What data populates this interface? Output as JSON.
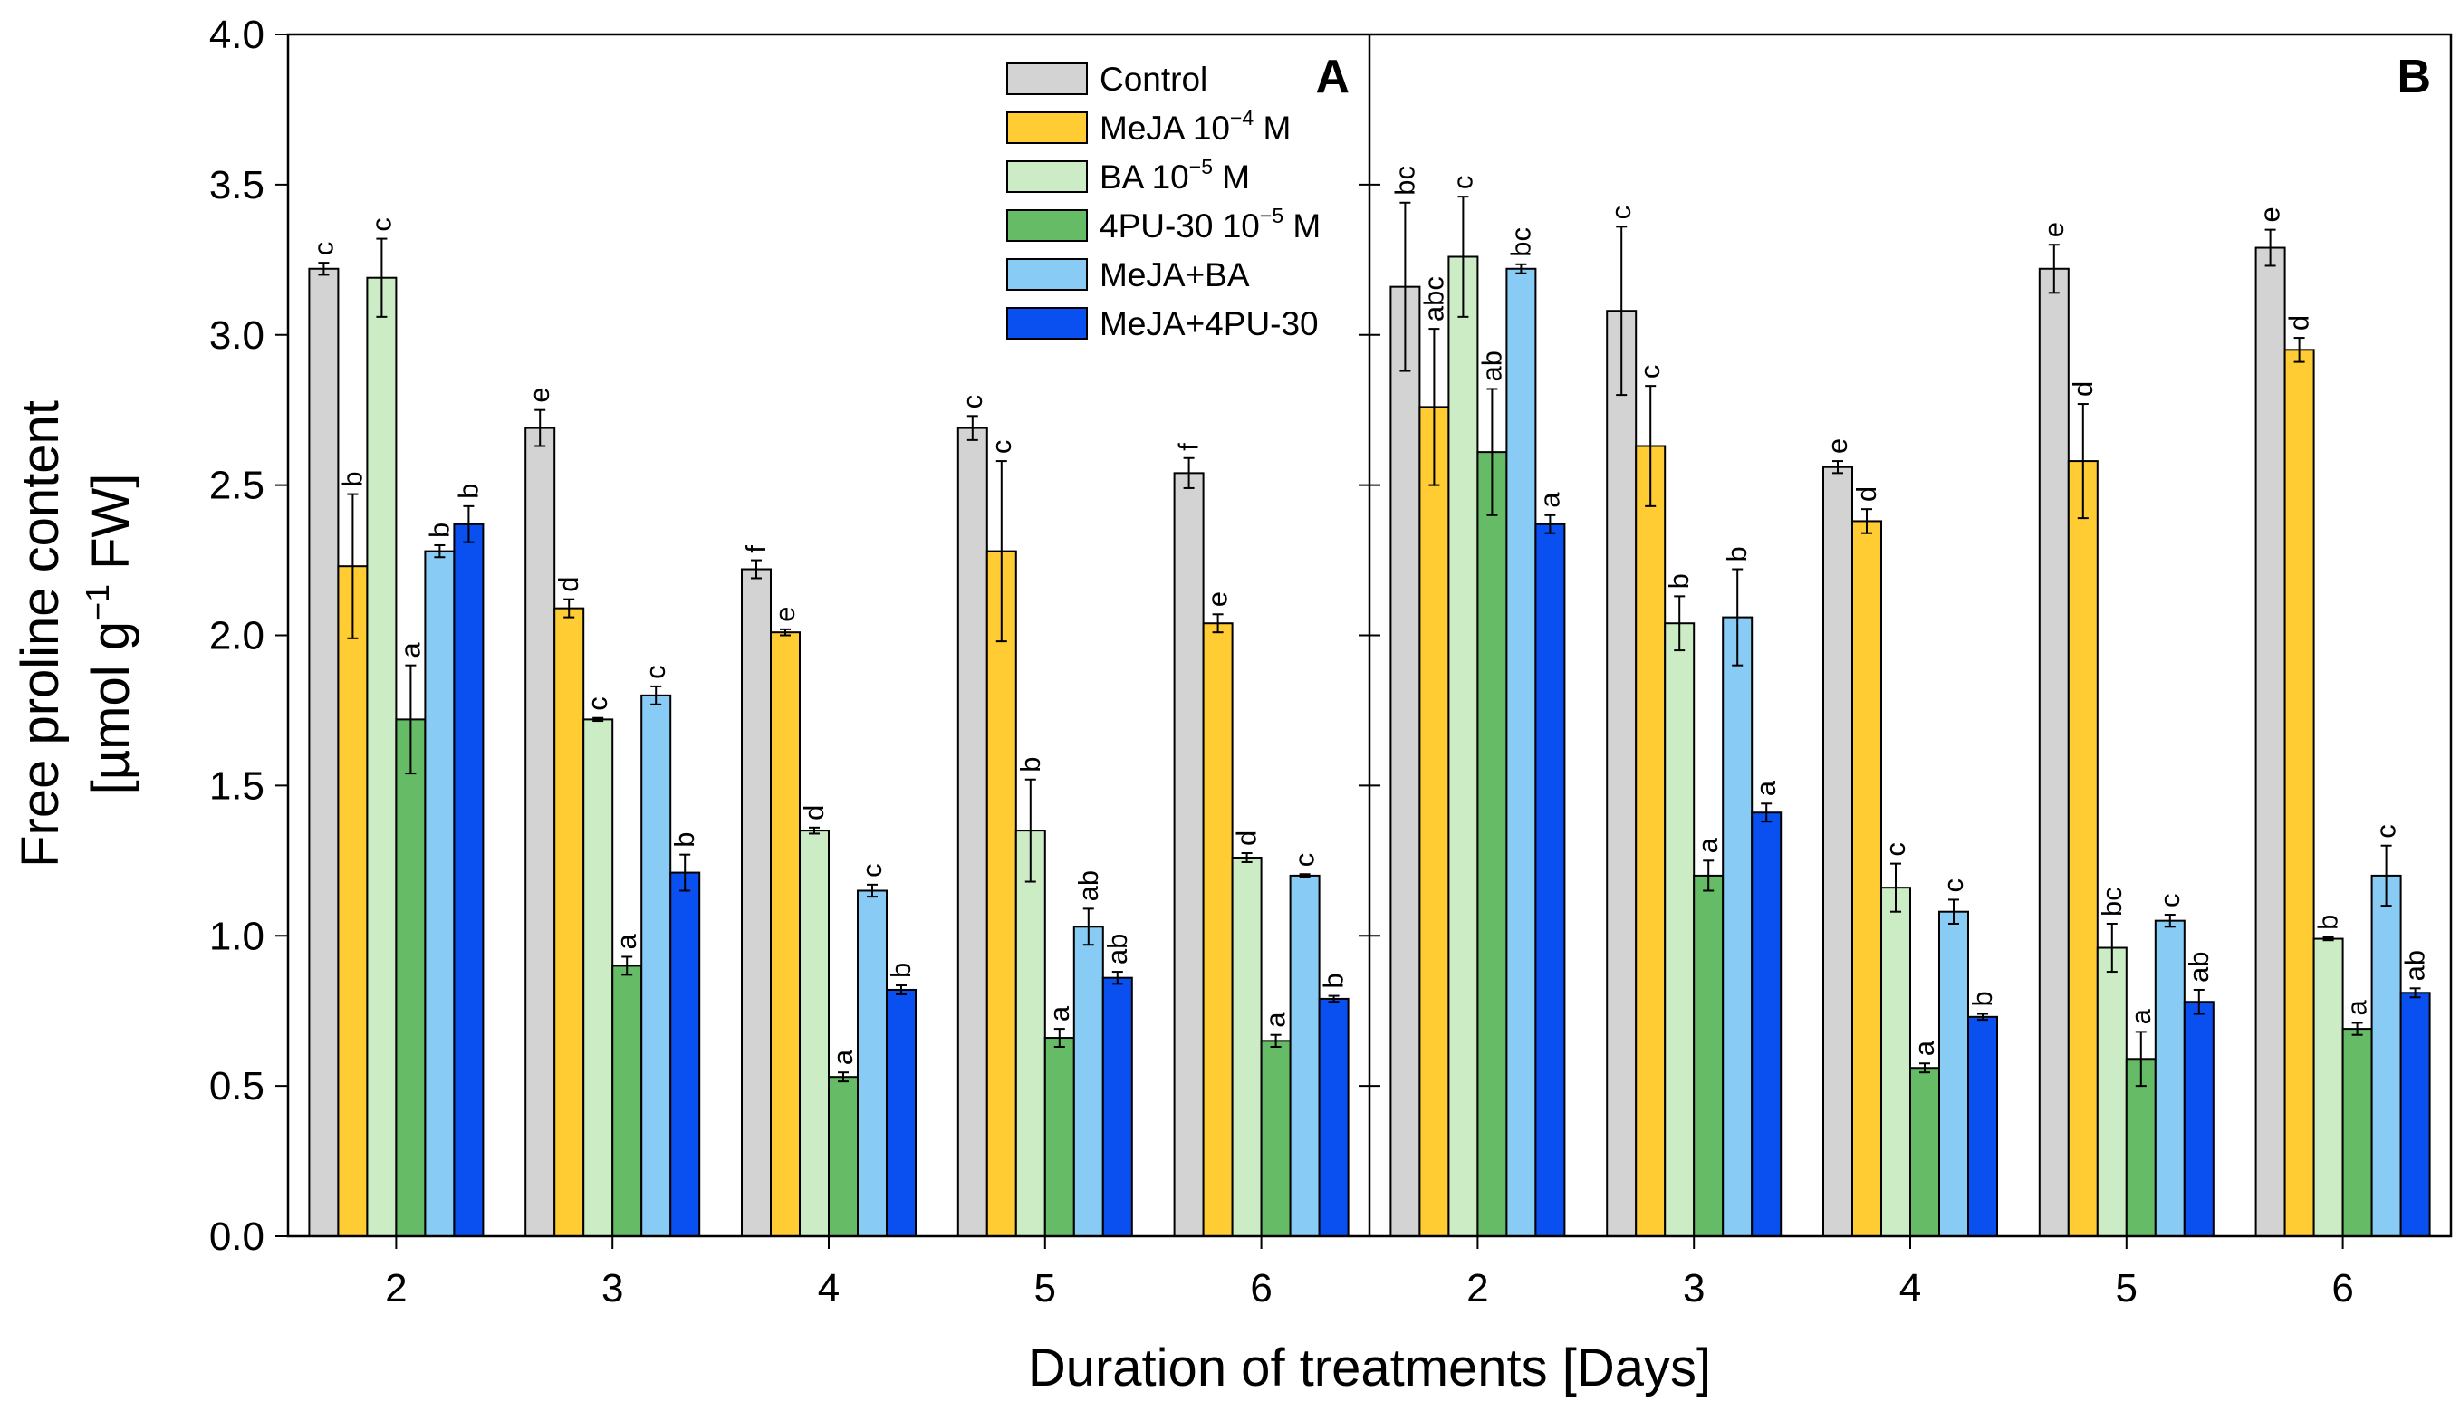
{
  "chart_data": {
    "type": "bar",
    "ylabel_line1": "Free proline content",
    "ylabel_line2_pre": "[µmol g",
    "ylabel_line2_sup": "−1",
    "ylabel_line2_post": " FW]",
    "xlabel": "Duration of treatments [Days]",
    "ylim": [
      0,
      4.0
    ],
    "yticks": [
      "0.0",
      "0.5",
      "1.0",
      "1.5",
      "2.0",
      "2.5",
      "3.0",
      "3.5",
      "4.0"
    ],
    "categories": [
      "2",
      "3",
      "4",
      "5",
      "6"
    ],
    "legend": [
      {
        "name": "Control",
        "base": "Control",
        "sup": "",
        "post": "",
        "color": "#d3d3d3"
      },
      {
        "name": "MeJA 10-4 M",
        "base": "MeJA 10",
        "sup": "−4",
        "post": " M",
        "color": "#ffcc33"
      },
      {
        "name": "BA 10-5 M",
        "base": "BA 10",
        "sup": "−5",
        "post": " M",
        "color": "#ccecc6"
      },
      {
        "name": "4PU-30 10-5 M",
        "base": "4PU-30 10",
        "sup": "−5",
        "post": " M",
        "color": "#66bb66"
      },
      {
        "name": "MeJA+BA",
        "base": "MeJA+BA",
        "sup": "",
        "post": "",
        "color": "#88ccf5"
      },
      {
        "name": "MeJA+4PU-30",
        "base": "MeJA+4PU-30",
        "sup": "",
        "post": "",
        "color": "#0a4ff0"
      }
    ],
    "panels": [
      {
        "label": "A",
        "series": [
          {
            "name": "Control",
            "values": [
              3.22,
              2.69,
              2.22,
              2.69,
              2.54
            ],
            "errors": [
              0.02,
              0.06,
              0.03,
              0.04,
              0.05
            ],
            "letters": [
              "c",
              "e",
              "f",
              "c",
              "f"
            ]
          },
          {
            "name": "MeJA 10-4 M",
            "values": [
              2.23,
              2.09,
              2.01,
              2.28,
              2.04
            ],
            "errors": [
              0.24,
              0.03,
              0.01,
              0.3,
              0.03
            ],
            "letters": [
              "b",
              "d",
              "e",
              "c",
              "e"
            ]
          },
          {
            "name": "BA 10-5 M",
            "values": [
              3.19,
              1.72,
              1.35,
              1.35,
              1.26
            ],
            "errors": [
              0.13,
              0.005,
              0.01,
              0.17,
              0.015
            ],
            "letters": [
              "c",
              "c",
              "d",
              "b",
              "d"
            ]
          },
          {
            "name": "4PU-30 10-5 M",
            "values": [
              1.72,
              0.9,
              0.53,
              0.66,
              0.65
            ],
            "errors": [
              0.18,
              0.03,
              0.015,
              0.03,
              0.02
            ],
            "letters": [
              "a",
              "a",
              "a",
              "a",
              "a"
            ]
          },
          {
            "name": "MeJA+BA",
            "values": [
              2.28,
              1.8,
              1.15,
              1.03,
              1.2
            ],
            "errors": [
              0.02,
              0.03,
              0.02,
              0.06,
              0.005
            ],
            "letters": [
              "b",
              "c",
              "c",
              "ab",
              "c"
            ]
          },
          {
            "name": "MeJA+4PU-30",
            "values": [
              2.37,
              1.21,
              0.82,
              0.86,
              0.79
            ],
            "errors": [
              0.06,
              0.06,
              0.015,
              0.02,
              0.01
            ],
            "letters": [
              "b",
              "b",
              "b",
              "ab",
              "b"
            ]
          }
        ]
      },
      {
        "label": "B",
        "series": [
          {
            "name": "Control",
            "values": [
              3.16,
              3.08,
              2.56,
              3.22,
              3.29
            ],
            "errors": [
              0.28,
              0.28,
              0.02,
              0.08,
              0.06
            ],
            "letters": [
              "bc",
              "c",
              "e",
              "e",
              "e"
            ]
          },
          {
            "name": "MeJA 10-4 M",
            "values": [
              2.76,
              2.63,
              2.38,
              2.58,
              2.95
            ],
            "errors": [
              0.26,
              0.2,
              0.04,
              0.19,
              0.04
            ],
            "letters": [
              "abc",
              "c",
              "d",
              "d",
              "d"
            ]
          },
          {
            "name": "BA 10-5 M",
            "values": [
              3.26,
              2.04,
              1.16,
              0.96,
              0.99
            ],
            "errors": [
              0.2,
              0.09,
              0.08,
              0.08,
              0.005
            ],
            "letters": [
              "c",
              "b",
              "c",
              "bc",
              "b"
            ]
          },
          {
            "name": "4PU-30 10-5 M",
            "values": [
              2.61,
              1.2,
              0.56,
              0.59,
              0.69
            ],
            "errors": [
              0.21,
              0.05,
              0.015,
              0.09,
              0.02
            ],
            "letters": [
              "ab",
              "a",
              "a",
              "a",
              "a"
            ]
          },
          {
            "name": "MeJA+BA",
            "values": [
              3.22,
              2.06,
              1.08,
              1.05,
              1.2
            ],
            "errors": [
              0.015,
              0.16,
              0.04,
              0.02,
              0.1
            ],
            "letters": [
              "bc",
              "b",
              "c",
              "c",
              "c"
            ]
          },
          {
            "name": "MeJA+4PU-30",
            "values": [
              2.37,
              1.41,
              0.73,
              0.78,
              0.81
            ],
            "errors": [
              0.03,
              0.03,
              0.01,
              0.04,
              0.015
            ],
            "letters": [
              "a",
              "a",
              "b",
              "ab",
              "ab"
            ]
          }
        ]
      }
    ]
  }
}
